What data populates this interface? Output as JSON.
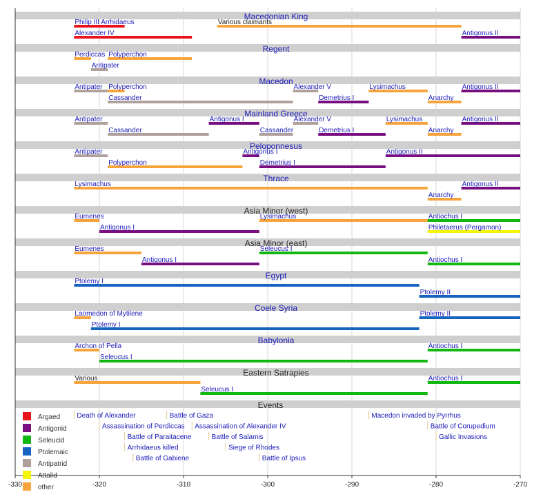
{
  "chart_data": {
    "type": "timeline",
    "xlim": [
      -330,
      -270
    ],
    "xticks": [
      -330,
      -320,
      -310,
      -300,
      -290,
      -280,
      -270
    ],
    "grid": true,
    "legend": [
      {
        "name": "Argaed",
        "color": "#e8141c"
      },
      {
        "name": "Antigonid",
        "color": "#780f80"
      },
      {
        "name": "Seleucid",
        "color": "#11b811"
      },
      {
        "name": "Ptolemaic",
        "color": "#1565c0"
      },
      {
        "name": "Antipatrid",
        "color": "#b0a09c"
      },
      {
        "name": "Attalid",
        "color": "#f5f50a"
      },
      {
        "name": "other",
        "color": "#f8a43c"
      }
    ],
    "sections": [
      {
        "title": "Macedonian King",
        "link": true,
        "rows": [
          [
            {
              "label": "Philip III Arrhidaeus",
              "start": -323,
              "end": -317,
              "color": "#e8141c"
            },
            {
              "label": "Various claimants",
              "start": -306,
              "end": -277,
              "color": "#f8a43c",
              "link": false
            }
          ],
          [
            {
              "label": "Alexander IV",
              "start": -323,
              "end": -309,
              "color": "#e8141c"
            },
            {
              "label": "Antigonus II",
              "start": -277,
              "end": -270,
              "color": "#780f80"
            }
          ]
        ]
      },
      {
        "title": "Regent",
        "link": true,
        "rows": [
          [
            {
              "label": "Perdiccas",
              "start": -323,
              "end": -321,
              "color": "#f8a43c"
            },
            {
              "label": "Polyperchon",
              "start": -319,
              "end": -309,
              "color": "#f8a43c"
            }
          ],
          [
            {
              "label": "Antipater",
              "start": -321,
              "end": -319,
              "color": "#b0a09c"
            }
          ]
        ]
      },
      {
        "title": "Macedon",
        "link": true,
        "rows": [
          [
            {
              "label": "Antipater",
              "start": -323,
              "end": -319,
              "color": "#b0a09c"
            },
            {
              "label": "Polyperchon",
              "start": -319,
              "end": -317,
              "color": "#f8a43c"
            },
            {
              "label": "Alexander V",
              "start": -297,
              "end": -294,
              "color": "#b0a09c"
            },
            {
              "label": "Lysimachus",
              "start": -288,
              "end": -281,
              "color": "#f8a43c"
            },
            {
              "label": "Antigonus II",
              "start": -277,
              "end": -270,
              "color": "#780f80"
            }
          ],
          [
            {
              "label": "Cassander",
              "start": -319,
              "end": -297,
              "color": "#b0a09c"
            },
            {
              "label": "Demetrius I",
              "start": -294,
              "end": -288,
              "color": "#780f80"
            },
            {
              "label": "Anarchy",
              "start": -281,
              "end": -277,
              "color": "#f8a43c"
            }
          ]
        ]
      },
      {
        "title": "Mainland Greece",
        "link": true,
        "rows": [
          [
            {
              "label": "Antipater",
              "start": -323,
              "end": -319,
              "color": "#b0a09c"
            },
            {
              "label": "Antigonus I",
              "start": -307,
              "end": -301,
              "color": "#780f80"
            },
            {
              "label": "Alexander V",
              "start": -297,
              "end": -294,
              "color": "#b0a09c"
            },
            {
              "label": "Lysimachus",
              "start": -286,
              "end": -281,
              "color": "#f8a43c"
            },
            {
              "label": "Antigonus II",
              "start": -277,
              "end": -270,
              "color": "#780f80"
            }
          ],
          [
            {
              "label": "Cassander",
              "start": -319,
              "end": -307,
              "color": "#b0a09c"
            },
            {
              "label": "Cassander",
              "start": -301,
              "end": -297,
              "color": "#b0a09c"
            },
            {
              "label": "Demetrius I",
              "start": -294,
              "end": -286,
              "color": "#780f80"
            },
            {
              "label": "Anarchy",
              "start": -281,
              "end": -277,
              "color": "#f8a43c"
            }
          ]
        ]
      },
      {
        "title": "Peloponnesus",
        "link": true,
        "rows": [
          [
            {
              "label": "Antipater",
              "start": -323,
              "end": -319,
              "color": "#b0a09c"
            },
            {
              "label": "Antigonus I",
              "start": -303,
              "end": -301,
              "color": "#780f80"
            },
            {
              "label": "Antigonus II",
              "start": -286,
              "end": -270,
              "color": "#780f80"
            }
          ],
          [
            {
              "label": "Polyperchon",
              "start": -319,
              "end": -303,
              "color": "#f8a43c"
            },
            {
              "label": "Demetrius I",
              "start": -301,
              "end": -286,
              "color": "#780f80"
            }
          ]
        ]
      },
      {
        "title": "Thrace",
        "link": true,
        "rows": [
          [
            {
              "label": "Lysimachus",
              "start": -323,
              "end": -281,
              "color": "#f8a43c"
            },
            {
              "label": "Antigonus II",
              "start": -277,
              "end": -270,
              "color": "#780f80"
            }
          ],
          [
            {
              "label": "Anarchy",
              "start": -281,
              "end": -277,
              "color": "#f8a43c"
            }
          ]
        ]
      },
      {
        "title": "Asia Minor (west)",
        "link": false,
        "rows": [
          [
            {
              "label": "Eumenes",
              "start": -323,
              "end": -320,
              "color": "#f8a43c"
            },
            {
              "label": "Lysimachus",
              "start": -301,
              "end": -281,
              "color": "#f8a43c"
            },
            {
              "label": "Antiochus I",
              "start": -281,
              "end": -270,
              "color": "#11b811"
            }
          ],
          [
            {
              "label": "Antigonus I",
              "start": -320,
              "end": -301,
              "color": "#780f80"
            },
            {
              "label": "Philetaerus (Pergamon)",
              "start": -281,
              "end": -270,
              "color": "#f5f50a"
            }
          ]
        ]
      },
      {
        "title": "Asia Minor (east)",
        "link": false,
        "rows": [
          [
            {
              "label": "Eumenes",
              "start": -323,
              "end": -315,
              "color": "#f8a43c"
            },
            {
              "label": "Seleucus I",
              "start": -301,
              "end": -281,
              "color": "#11b811"
            }
          ],
          [
            {
              "label": "Antigonus I",
              "start": -315,
              "end": -301,
              "color": "#780f80"
            },
            {
              "label": "Antiochus I",
              "start": -281,
              "end": -270,
              "color": "#11b811"
            }
          ]
        ]
      },
      {
        "title": "Egypt",
        "link": true,
        "rows": [
          [
            {
              "label": "Ptolemy I",
              "start": -323,
              "end": -282,
              "color": "#1565c0"
            }
          ],
          [
            {
              "label": "Ptolemy II",
              "start": -282,
              "end": -270,
              "color": "#1565c0"
            }
          ]
        ]
      },
      {
        "title": "Coele Syria",
        "link": true,
        "rows": [
          [
            {
              "label": "Laomedon of Mytilene",
              "start": -323,
              "end": -321,
              "color": "#f8a43c"
            },
            {
              "label": "Ptolemy II",
              "start": -282,
              "end": -270,
              "color": "#1565c0"
            }
          ],
          [
            {
              "label": "Ptolemy I",
              "start": -321,
              "end": -282,
              "color": "#1565c0"
            }
          ]
        ]
      },
      {
        "title": "Babylonia",
        "link": true,
        "rows": [
          [
            {
              "label": "Archon of Pella",
              "start": -323,
              "end": -320,
              "color": "#f8a43c"
            },
            {
              "label": "Antiochus I",
              "start": -281,
              "end": -270,
              "color": "#11b811"
            }
          ],
          [
            {
              "label": "Seleucus I",
              "start": -320,
              "end": -281,
              "color": "#11b811"
            }
          ]
        ]
      },
      {
        "title": "Eastern Satrapies",
        "link": false,
        "rows": [
          [
            {
              "label": "Various",
              "start": -323,
              "end": -308,
              "color": "#f8a43c",
              "link": false
            },
            {
              "label": "Antiochus I",
              "start": -281,
              "end": -270,
              "color": "#11b811"
            }
          ],
          [
            {
              "label": "Seleucus I",
              "start": -308,
              "end": -281,
              "color": "#11b811"
            }
          ]
        ]
      }
    ],
    "events": {
      "title": "Events",
      "rows": [
        [
          {
            "label": "Death of Alexander",
            "year": -323
          },
          {
            "label": "Battle of Gaza",
            "year": -312
          },
          {
            "label": "Macedon invaded by Pyrrhus",
            "year": -288
          }
        ],
        [
          {
            "label": "Assassination of Perdiccas",
            "year": -320
          },
          {
            "label": "Assassination of Alexander IV",
            "year": -309
          },
          {
            "label": "Battle of Corupedium",
            "year": -281
          }
        ],
        [
          {
            "label": "Battle of Paraitacene",
            "year": -317
          },
          {
            "label": "Battle of Salamis",
            "year": -307
          },
          {
            "label": "Gallic Invasions",
            "year": -280
          }
        ],
        [
          {
            "label": "Arrhidaeus killed",
            "year": -317
          },
          {
            "label": "Siege of Rhodes",
            "year": -305
          }
        ],
        [
          {
            "label": "Battle of Gabiene",
            "year": -316
          },
          {
            "label": "Battle of Ipsus",
            "year": -301
          }
        ]
      ]
    }
  }
}
